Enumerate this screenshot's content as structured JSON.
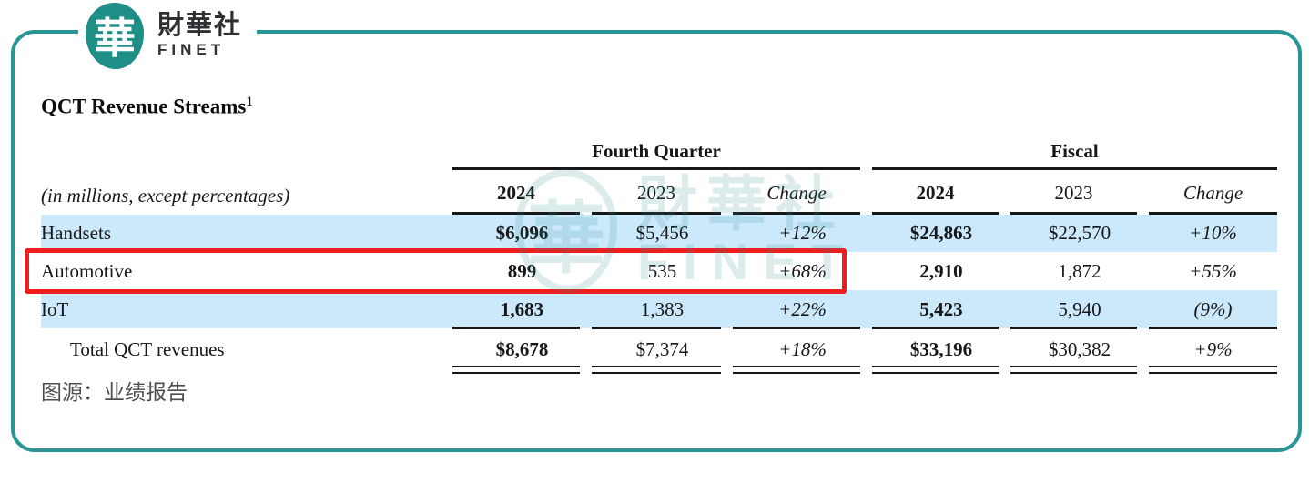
{
  "logo": {
    "seal_glyph": "華",
    "name_cn": "財華社",
    "name_en": "FINET"
  },
  "watermark": {
    "seal_glyph": "華",
    "cn": "財華社",
    "en": "FINET"
  },
  "footer": {
    "source_caption": "图源：业绩报告"
  },
  "colors": {
    "accent_teal": "#2a9595",
    "logo_teal": "#1e8e86",
    "row_highlight_blue": "#cbe9fb",
    "highlight_red": "#ee1e1e",
    "text_dark": "#17171a",
    "caption_gray": "#4d4d4d",
    "watermark_teal": "#2a8f8f"
  },
  "chart_data": {
    "type": "table",
    "title": "QCT Revenue Streams",
    "title_footnote": "1",
    "note": "(in millions, except percentages)",
    "column_groups": [
      {
        "label": "Fourth Quarter",
        "columns": [
          "2024",
          "2023",
          "Change"
        ]
      },
      {
        "label": "Fiscal",
        "columns": [
          "2024",
          "2023",
          "Change"
        ]
      }
    ],
    "rows": [
      {
        "label": "Handsets",
        "values": [
          "$6,096",
          "$5,456",
          "+12%",
          "$24,863",
          "$22,570",
          "+10%"
        ],
        "highlight": "blue"
      },
      {
        "label": "Automotive",
        "values": [
          "899",
          "535",
          "+68%",
          "2,910",
          "1,872",
          "+55%"
        ],
        "highlight": "red-box"
      },
      {
        "label": "IoT",
        "values": [
          "1,683",
          "1,383",
          "+22%",
          "5,423",
          "5,940",
          "(9%)"
        ],
        "highlight": "blue"
      },
      {
        "label": "Total QCT revenues",
        "values": [
          "$8,678",
          "$7,374",
          "+18%",
          "$33,196",
          "$30,382",
          "+9%"
        ],
        "is_total": true
      }
    ],
    "annotations": {
      "highlighted_row": "Automotive",
      "highlighted_columns": "row label through Fourth Quarter Change",
      "highlight_style": "red-box"
    },
    "layout": {
      "grid": "off",
      "header_rules": "single",
      "total_rules": "double"
    }
  }
}
